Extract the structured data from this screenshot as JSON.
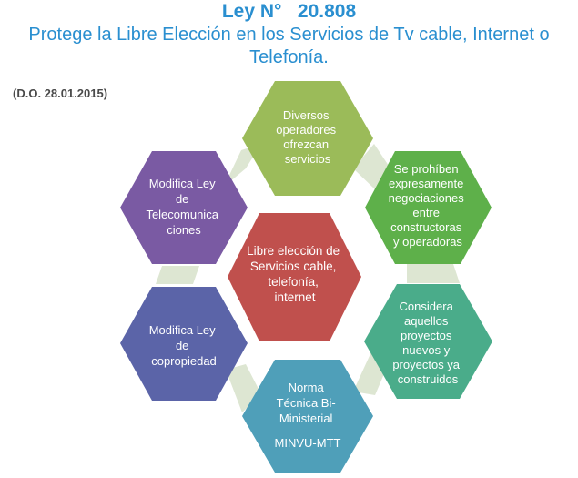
{
  "header": {
    "title": "Ley N°   20.808",
    "subtitle": "Protege la Libre Elección en los Servicios de Tv cable, Internet o Telefonía.",
    "publication": "(D.O. 28.01.2015)"
  },
  "diagram": {
    "center": {
      "lines": [
        "Libre elección de",
        "Servicios cable,",
        "telefonía,",
        "internet"
      ],
      "color": "#c0504d"
    },
    "nodes": [
      {
        "id": "diversos",
        "lines": [
          "Diversos",
          "operadores",
          "ofrezcan",
          "servicios"
        ],
        "color": "#9bbb59"
      },
      {
        "id": "prohiben",
        "lines": [
          "Se prohíben",
          "expresamente",
          "negociaciones",
          "entre",
          "constructoras",
          "y operadoras"
        ],
        "color": "#5eb04a"
      },
      {
        "id": "considera",
        "lines": [
          "Considera",
          "aquellos",
          "proyectos",
          "nuevos y",
          "proyectos ya",
          "construidos"
        ],
        "color": "#4aac8a"
      },
      {
        "id": "norma",
        "lines": [
          "Norma",
          "Técnica Bi-",
          "Ministerial",
          "MINVU-MTT"
        ],
        "color": "#4f9fb9"
      },
      {
        "id": "copropiedad",
        "lines": [
          "Modifica Ley",
          "de",
          "copropiedad"
        ],
        "color": "#5b64a8"
      },
      {
        "id": "telecom",
        "lines": [
          "Modifica Ley",
          "de",
          "Telecomunica",
          "ciones"
        ],
        "color": "#7a5aa3"
      }
    ],
    "connector_color": "#dde6d2"
  }
}
